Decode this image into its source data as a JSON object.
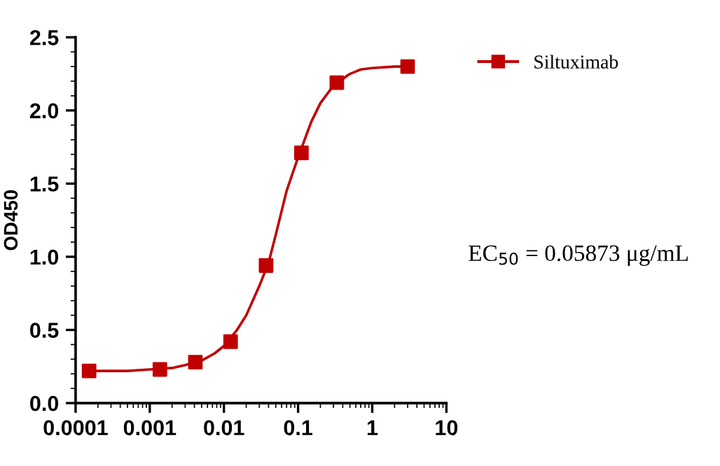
{
  "chart_data": {
    "type": "scatter",
    "ylabel": "OD450",
    "log": "x",
    "xlim": [
      0.0001,
      10
    ],
    "xticks": [
      0.0001,
      0.001,
      0.01,
      0.1,
      1,
      10
    ],
    "ylim": [
      0,
      2.5
    ],
    "yticks": [
      {
        "value": 0,
        "label": "0.0"
      },
      {
        "value": 0.5,
        "label": "0.5"
      },
      {
        "value": 1,
        "label": "1.0"
      },
      {
        "value": 1.5,
        "label": "1.5"
      },
      {
        "value": 2,
        "label": "2.0"
      },
      {
        "value": 2.5,
        "label": "2.5"
      }
    ],
    "grid": false,
    "legend": "top right",
    "series": [
      {
        "name": "Siltuximab",
        "color": "#c00000",
        "marker": "square",
        "x": [
          0.000152,
          0.00137,
          0.00412,
          0.0123,
          0.037,
          0.111,
          0.333,
          3
        ],
        "values": [
          0.22,
          0.23,
          0.28,
          0.42,
          0.94,
          1.71,
          2.19,
          2.3
        ]
      },
      {
        "type": "line",
        "color": "#c00000",
        "marker": "none",
        "x": [
          0.000152,
          0.0005,
          0.001,
          0.002,
          0.003,
          0.005,
          0.0075,
          0.01,
          0.015,
          0.02,
          0.03,
          0.04,
          0.05,
          0.07,
          0.1,
          0.15,
          0.2,
          0.3,
          0.5,
          0.7,
          1,
          2,
          3
        ],
        "values": [
          0.22,
          0.22,
          0.23,
          0.24,
          0.26,
          0.29,
          0.34,
          0.39,
          0.5,
          0.6,
          0.8,
          0.96,
          1.15,
          1.45,
          1.68,
          1.92,
          2.05,
          2.17,
          2.25,
          2.28,
          2.29,
          2.3,
          2.3
        ]
      }
    ],
    "annotations": [
      "EC$_{50}$ = 0.05873 μg/mL"
    ]
  }
}
